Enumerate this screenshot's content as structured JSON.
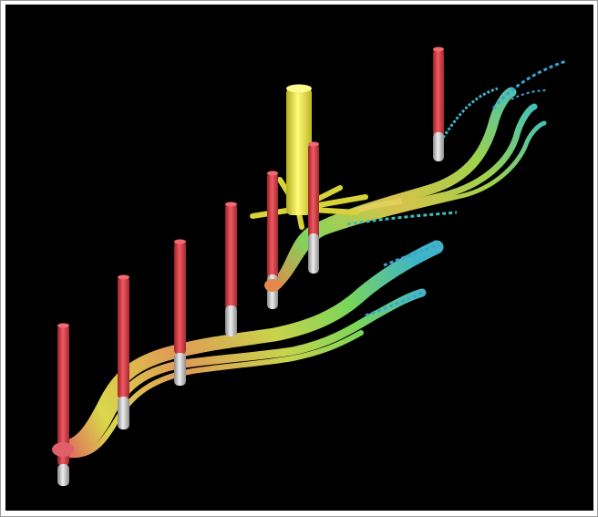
{
  "scene": {
    "background": "#000000",
    "colors": {
      "casing": "#e2414a",
      "liner": "#c8c8c8",
      "platform": "#f4ef4a",
      "streamline_hot": "#e58c47",
      "streamline_mid": "#9ad94a",
      "streamline_cool": "#3fb6c9"
    },
    "wells": [
      {
        "id": "well-1",
        "has_liner": true
      },
      {
        "id": "well-2",
        "has_liner": true
      },
      {
        "id": "well-3",
        "has_liner": true
      },
      {
        "id": "well-4",
        "has_liner": true
      },
      {
        "id": "well-5",
        "has_liner": true
      },
      {
        "id": "well-6",
        "has_liner": false
      },
      {
        "id": "well-7",
        "has_liner": true
      }
    ],
    "platform": {
      "name": "injector-platform",
      "spokes": 5
    }
  }
}
